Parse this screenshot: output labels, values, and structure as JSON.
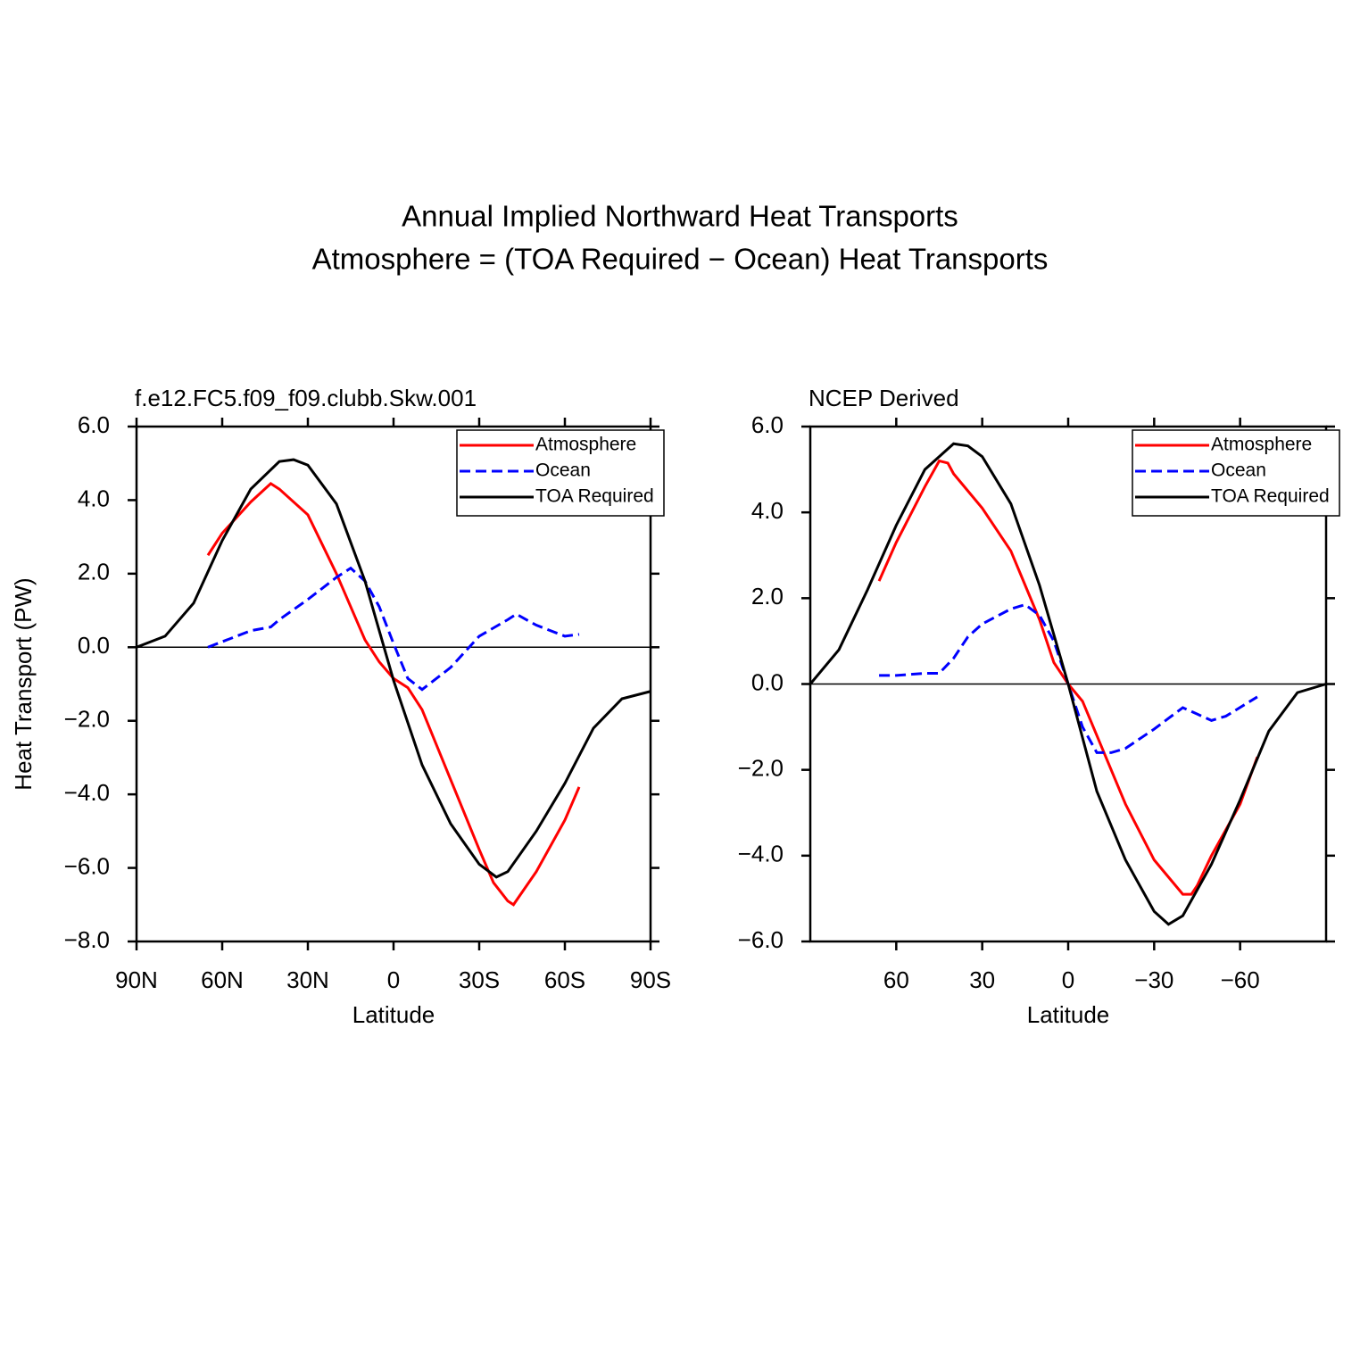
{
  "title": [
    "Annual Implied Northward Heat Transports",
    "Atmosphere = (TOA Required − Ocean) Heat Transports"
  ],
  "chart_data": [
    {
      "type": "line",
      "subtitle": "f.e12.FC5.f09_f09.clubb.Skw.001",
      "xlabel": "Latitude",
      "ylabel": "Heat Transport (PW)",
      "xlim": [
        90,
        -90
      ],
      "ylim": [
        -8,
        6
      ],
      "xticks": [
        {
          "value": 90,
          "label": "90N"
        },
        {
          "value": 60,
          "label": "60N"
        },
        {
          "value": 30,
          "label": "30N"
        },
        0,
        {
          "value": -30,
          "label": "30S"
        },
        {
          "value": -60,
          "label": "60S"
        },
        {
          "value": -90,
          "label": "90S"
        }
      ],
      "yticks": [
        {
          "value": 6,
          "label": "6.0"
        },
        {
          "value": 4,
          "label": "4.0"
        },
        {
          "value": 2,
          "label": "2.0"
        },
        {
          "value": 0,
          "label": "0.0"
        },
        {
          "value": -2,
          "label": "−2.0"
        },
        {
          "value": -4,
          "label": "−4.0"
        },
        {
          "value": -6,
          "label": "−6.0"
        },
        {
          "value": -8,
          "label": "−8.0"
        }
      ],
      "legend": "upper right",
      "series": [
        {
          "name": "Atmosphere",
          "color": "#ff0000",
          "line_style": "solid",
          "x": [
            65,
            60,
            50,
            43,
            40,
            30,
            20,
            10,
            5,
            0,
            -5,
            -10,
            -20,
            -30,
            -35,
            -40,
            -42,
            -50,
            -60,
            -65
          ],
          "values": [
            2.5,
            3.1,
            3.95,
            4.45,
            4.3,
            3.6,
            2.0,
            0.2,
            -0.4,
            -0.85,
            -1.1,
            -1.7,
            -3.6,
            -5.5,
            -6.4,
            -6.9,
            -7.0,
            -6.1,
            -4.7,
            -3.8
          ]
        },
        {
          "name": "Ocean",
          "color": "#0000ff",
          "line_style": "dashed",
          "x": [
            65,
            60,
            50,
            43,
            40,
            30,
            20,
            15,
            10,
            5,
            0,
            -5,
            -10,
            -20,
            -30,
            -40,
            -43,
            -50,
            -60,
            -65
          ],
          "values": [
            0.0,
            0.15,
            0.45,
            0.55,
            0.75,
            1.3,
            1.9,
            2.15,
            1.8,
            1.1,
            0.1,
            -0.85,
            -1.15,
            -0.55,
            0.3,
            0.75,
            0.9,
            0.6,
            0.3,
            0.35
          ]
        },
        {
          "name": "TOA Required",
          "color": "#000000",
          "line_style": "solid",
          "x": [
            90,
            80,
            70,
            60,
            50,
            40,
            35,
            30,
            20,
            10,
            0,
            -10,
            -20,
            -30,
            -36,
            -40,
            -50,
            -60,
            -70,
            -80,
            -90
          ],
          "values": [
            0.0,
            0.3,
            1.2,
            2.9,
            4.3,
            5.05,
            5.1,
            4.95,
            3.9,
            1.8,
            -0.9,
            -3.2,
            -4.8,
            -5.9,
            -6.25,
            -6.1,
            -5.0,
            -3.7,
            -2.2,
            -1.4,
            -1.2
          ]
        }
      ]
    },
    {
      "type": "line",
      "subtitle": "NCEP Derived",
      "xlabel": "Latitude",
      "xlim": [
        90,
        -90
      ],
      "ylim": [
        -6,
        6
      ],
      "xticks": [
        60,
        30,
        0,
        {
          "value": -30,
          "label": "−30"
        },
        {
          "value": -60,
          "label": "−60"
        }
      ],
      "yticks": [
        {
          "value": 6,
          "label": "6.0"
        },
        {
          "value": 4,
          "label": "4.0"
        },
        {
          "value": 2,
          "label": "2.0"
        },
        {
          "value": 0,
          "label": "0.0"
        },
        {
          "value": -2,
          "label": "−2.0"
        },
        {
          "value": -4,
          "label": "−4.0"
        },
        {
          "value": -6,
          "label": "−6.0"
        }
      ],
      "legend": "upper right",
      "series": [
        {
          "name": "Atmosphere",
          "color": "#ff0000",
          "line_style": "solid",
          "x": [
            66,
            60,
            50,
            45,
            42,
            40,
            35,
            30,
            20,
            10,
            5,
            0,
            -5,
            -10,
            -20,
            -30,
            -35,
            -40,
            -43,
            -45,
            -50,
            -60,
            -66
          ],
          "values": [
            2.4,
            3.3,
            4.6,
            5.2,
            5.15,
            4.9,
            4.5,
            4.1,
            3.1,
            1.5,
            0.5,
            0.0,
            -0.4,
            -1.2,
            -2.8,
            -4.1,
            -4.5,
            -4.9,
            -4.9,
            -4.7,
            -4.0,
            -2.8,
            -1.7
          ]
        },
        {
          "name": "Ocean",
          "color": "#0000ff",
          "line_style": "dashed",
          "x": [
            66,
            60,
            50,
            45,
            40,
            35,
            30,
            20,
            15,
            10,
            5,
            0,
            -5,
            -10,
            -15,
            -20,
            -30,
            -35,
            -40,
            -45,
            -50,
            -55,
            -66
          ],
          "values": [
            0.2,
            0.2,
            0.25,
            0.25,
            0.6,
            1.1,
            1.4,
            1.75,
            1.85,
            1.6,
            1.0,
            0.0,
            -1.0,
            -1.6,
            -1.6,
            -1.5,
            -1.05,
            -0.8,
            -0.55,
            -0.7,
            -0.85,
            -0.75,
            -0.3
          ]
        },
        {
          "name": "TOA Required",
          "color": "#000000",
          "line_style": "solid",
          "x": [
            90,
            80,
            70,
            60,
            50,
            40,
            35,
            30,
            20,
            10,
            0,
            -10,
            -20,
            -30,
            -35,
            -40,
            -50,
            -60,
            -70,
            -80,
            -90
          ],
          "values": [
            0.0,
            0.8,
            2.2,
            3.7,
            5.0,
            5.6,
            5.55,
            5.3,
            4.2,
            2.3,
            0.0,
            -2.5,
            -4.1,
            -5.3,
            -5.6,
            -5.4,
            -4.2,
            -2.7,
            -1.1,
            -0.2,
            0.0
          ]
        }
      ]
    }
  ]
}
